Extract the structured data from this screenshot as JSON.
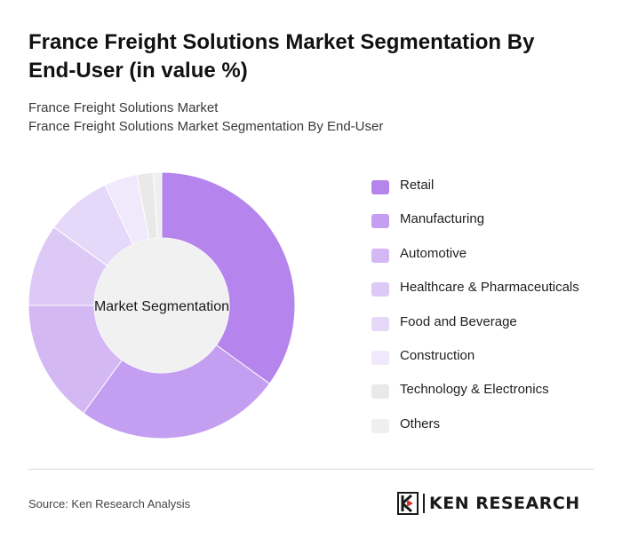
{
  "header": {
    "title": "France Freight Solutions Market Segmentation By End-User (in value %)",
    "subtitle_line1": "France Freight Solutions Market",
    "subtitle_line2": "France Freight Solutions Market Segmentation By End-User"
  },
  "chart_data": {
    "type": "pie",
    "variant": "donut",
    "center_label": "Market Segmentation",
    "legend_position": "right",
    "categories": [
      "Retail",
      "Manufacturing",
      "Automotive",
      "Healthcare & Pharmaceuticals",
      "Food and Beverage",
      "Construction",
      "Technology & Electronics",
      "Others"
    ],
    "values": [
      35,
      25,
      15,
      10,
      8,
      4,
      2,
      1
    ],
    "colors": [
      "#b584ec",
      "#c49ef1",
      "#d4b8f4",
      "#ddc9f6",
      "#e6d8f8",
      "#f0e8fb",
      "#e9e9e9",
      "#efefef"
    ]
  },
  "footer": {
    "source": "Source: Ken Research Analysis",
    "logo_text": "KEN RESEARCH"
  }
}
